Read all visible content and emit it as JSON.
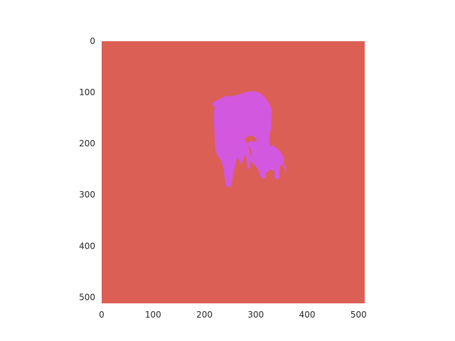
{
  "chart_data": {
    "type": "heatmap",
    "title": "",
    "xlabel": "",
    "ylabel": "",
    "xlim": [
      0,
      512
    ],
    "ylim": [
      512,
      0
    ],
    "x_ticks": [
      0,
      100,
      200,
      300,
      400,
      500
    ],
    "y_ticks": [
      0,
      100,
      200,
      300,
      400,
      500
    ],
    "x_tick_labels": [
      "0",
      "100",
      "200",
      "300",
      "400",
      "500"
    ],
    "y_tick_labels": [
      "0",
      "100",
      "200",
      "300",
      "400",
      "500"
    ],
    "grid": false,
    "legend": "none",
    "classes": [
      {
        "id": 0,
        "color": "#dc5f55"
      },
      {
        "id": 1,
        "color": "#d158df"
      }
    ],
    "regions": [
      {
        "class": 1,
        "polygon": [
          [
            215,
            122
          ],
          [
            222,
            117
          ],
          [
            232,
            112
          ],
          [
            243,
            107
          ],
          [
            255,
            108
          ],
          [
            268,
            104
          ],
          [
            280,
            100
          ],
          [
            295,
            98
          ],
          [
            308,
            101
          ],
          [
            318,
            110
          ],
          [
            326,
            122
          ],
          [
            331,
            136
          ],
          [
            330,
            150
          ],
          [
            330,
            166
          ],
          [
            327,
            180
          ],
          [
            326,
            197
          ],
          [
            328,
            204
          ],
          [
            336,
            206
          ],
          [
            346,
            214
          ],
          [
            352,
            223
          ],
          [
            355,
            233
          ],
          [
            353,
            240
          ],
          [
            359,
            244
          ],
          [
            359,
            256
          ],
          [
            356,
            248
          ],
          [
            353,
            240
          ],
          [
            346,
            244
          ],
          [
            346,
            256
          ],
          [
            346,
            266
          ],
          [
            343,
            270
          ],
          [
            337,
            267
          ],
          [
            337,
            256
          ],
          [
            332,
            250
          ],
          [
            326,
            252
          ],
          [
            319,
            258
          ],
          [
            319,
            265
          ],
          [
            313,
            269
          ],
          [
            308,
            262
          ],
          [
            306,
            252
          ],
          [
            302,
            246
          ],
          [
            296,
            240
          ],
          [
            290,
            232
          ],
          [
            289,
            246
          ],
          [
            285,
            250
          ],
          [
            283,
            240
          ],
          [
            282,
            226
          ],
          [
            278,
            222
          ],
          [
            275,
            232
          ],
          [
            272,
            242
          ],
          [
            268,
            232
          ],
          [
            264,
            226
          ],
          [
            261,
            236
          ],
          [
            258,
            250
          ],
          [
            255,
            262
          ],
          [
            253,
            276
          ],
          [
            250,
            284
          ],
          [
            245,
            285
          ],
          [
            242,
            282
          ],
          [
            241,
            272
          ],
          [
            239,
            262
          ],
          [
            238,
            250
          ],
          [
            235,
            240
          ],
          [
            232,
            232
          ],
          [
            228,
            226
          ],
          [
            225,
            222
          ],
          [
            222,
            212
          ],
          [
            221,
            198
          ],
          [
            220,
            180
          ],
          [
            219,
            160
          ],
          [
            219,
            140
          ],
          [
            220,
            128
          ]
        ]
      },
      {
        "class": 0,
        "polygon": [
          [
            279,
            190
          ],
          [
            286,
            185
          ],
          [
            295,
            186
          ],
          [
            302,
            192
          ],
          [
            298,
            196
          ],
          [
            292,
            194
          ],
          [
            286,
            196
          ],
          [
            283,
            200
          ],
          [
            281,
            196
          ]
        ]
      },
      {
        "class": 0,
        "polygon": [
          [
            286,
            204
          ],
          [
            291,
            214
          ],
          [
            290,
            224
          ],
          [
            288,
            214
          ]
        ]
      }
    ]
  }
}
